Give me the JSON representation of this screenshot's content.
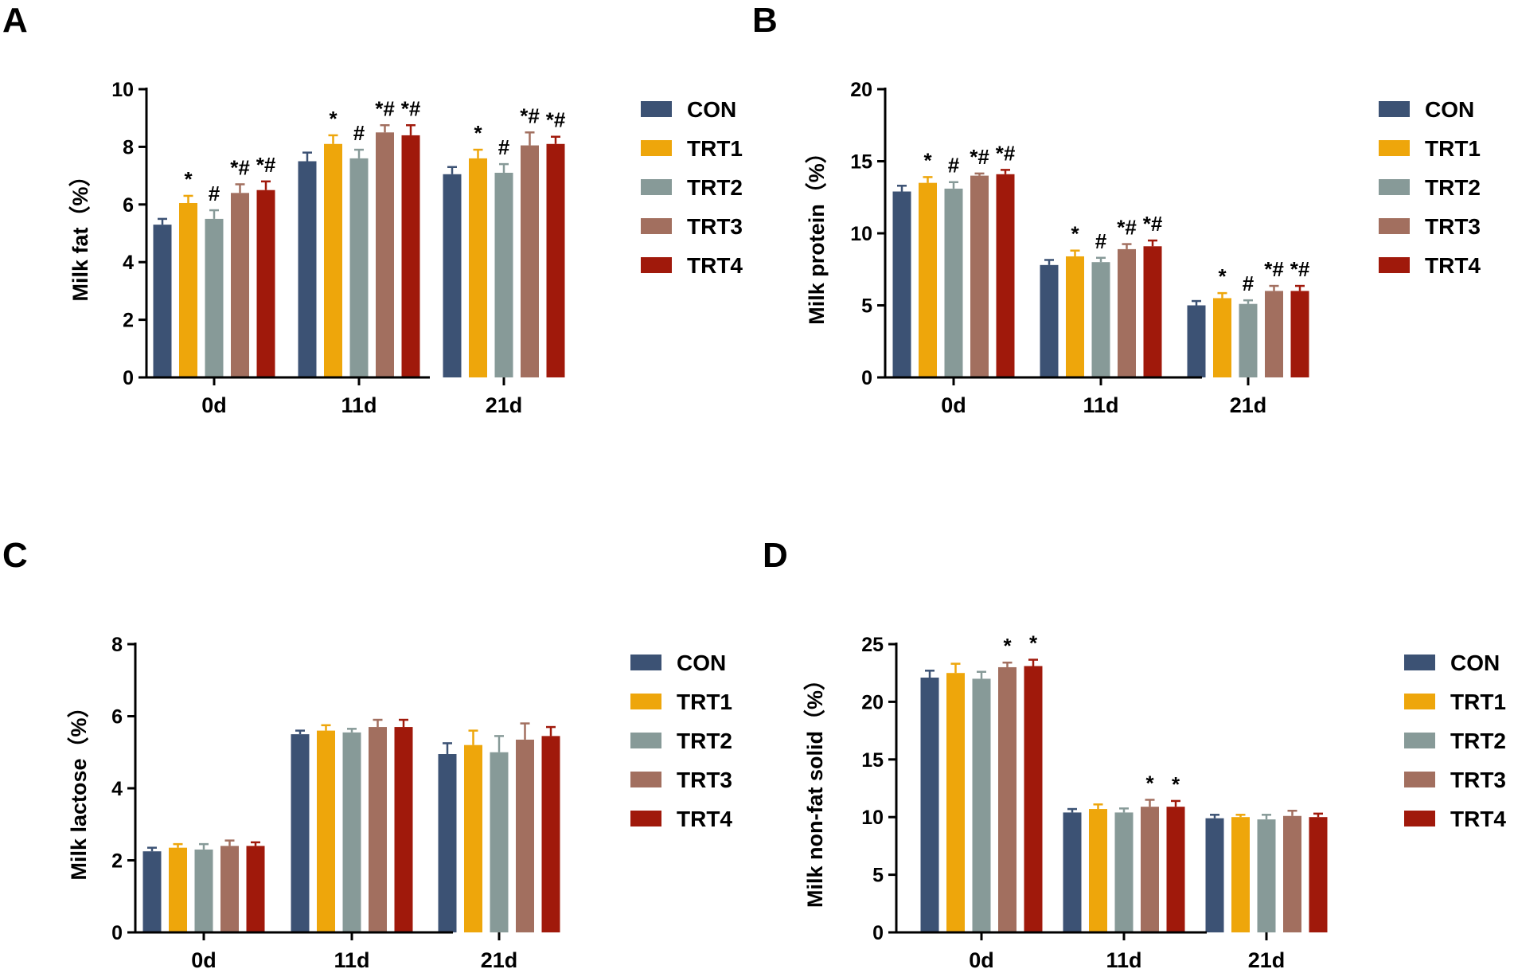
{
  "figure": {
    "series_colors": {
      "CON": "#3c5274",
      "TRT1": "#eea60b",
      "TRT2": "#879a98",
      "TRT3": "#a26f5f",
      "TRT4": "#a0190b"
    },
    "axis_color": "#000000"
  },
  "chart_data": [
    {
      "panel": "A",
      "type": "bar",
      "categories": [
        "0d",
        "11d",
        "21d"
      ],
      "ylabel": "Milk fat（%）",
      "ylim": [
        0,
        10
      ],
      "yticks": [
        0,
        2,
        4,
        6,
        8,
        10
      ],
      "legend_position": "right",
      "series": [
        {
          "name": "CON",
          "values": [
            5.3,
            7.5,
            7.05
          ],
          "errors": [
            0.2,
            0.3,
            0.25
          ],
          "sig": [
            "",
            "",
            ""
          ]
        },
        {
          "name": "TRT1",
          "values": [
            6.05,
            8.1,
            7.6
          ],
          "errors": [
            0.25,
            0.3,
            0.3
          ],
          "sig": [
            "*",
            "*",
            "*"
          ]
        },
        {
          "name": "TRT2",
          "values": [
            5.5,
            7.6,
            7.1
          ],
          "errors": [
            0.3,
            0.3,
            0.3
          ],
          "sig": [
            "#",
            "#",
            "#"
          ]
        },
        {
          "name": "TRT3",
          "values": [
            6.4,
            8.5,
            8.05
          ],
          "errors": [
            0.3,
            0.25,
            0.45
          ],
          "sig": [
            "*#",
            "*#",
            "*#"
          ]
        },
        {
          "name": "TRT4",
          "values": [
            6.5,
            8.4,
            8.1
          ],
          "errors": [
            0.3,
            0.35,
            0.25
          ],
          "sig": [
            "*#",
            "*#",
            "*#"
          ]
        }
      ]
    },
    {
      "panel": "B",
      "type": "bar",
      "categories": [
        "0d",
        "11d",
        "21d"
      ],
      "ylabel": "Milk protein（%）",
      "ylim": [
        0,
        20
      ],
      "yticks": [
        0,
        5,
        10,
        15,
        20
      ],
      "legend_position": "right",
      "series": [
        {
          "name": "CON",
          "values": [
            12.9,
            7.8,
            5.0
          ],
          "errors": [
            0.4,
            0.35,
            0.3
          ],
          "sig": [
            "",
            "",
            ""
          ]
        },
        {
          "name": "TRT1",
          "values": [
            13.5,
            8.4,
            5.5
          ],
          "errors": [
            0.4,
            0.4,
            0.35
          ],
          "sig": [
            "*",
            "*",
            "*"
          ]
        },
        {
          "name": "TRT2",
          "values": [
            13.1,
            8.0,
            5.1
          ],
          "errors": [
            0.45,
            0.3,
            0.25
          ],
          "sig": [
            "#",
            "#",
            "#"
          ]
        },
        {
          "name": "TRT3",
          "values": [
            14.0,
            8.9,
            6.0
          ],
          "errors": [
            0.15,
            0.35,
            0.35
          ],
          "sig": [
            "*#",
            "*#",
            "*#"
          ]
        },
        {
          "name": "TRT4",
          "values": [
            14.1,
            9.1,
            6.0
          ],
          "errors": [
            0.3,
            0.4,
            0.35
          ],
          "sig": [
            "*#",
            "*#",
            "*#"
          ]
        }
      ]
    },
    {
      "panel": "C",
      "type": "bar",
      "categories": [
        "0d",
        "11d",
        "21d"
      ],
      "ylabel": "Milk lactose（%）",
      "ylim": [
        0,
        8
      ],
      "yticks": [
        0,
        2,
        4,
        6,
        8
      ],
      "legend_position": "right",
      "series": [
        {
          "name": "CON",
          "values": [
            2.25,
            5.5,
            4.95
          ],
          "errors": [
            0.1,
            0.1,
            0.3
          ],
          "sig": [
            "",
            "",
            ""
          ]
        },
        {
          "name": "TRT1",
          "values": [
            2.35,
            5.6,
            5.2
          ],
          "errors": [
            0.1,
            0.15,
            0.4
          ],
          "sig": [
            "",
            "",
            ""
          ]
        },
        {
          "name": "TRT2",
          "values": [
            2.3,
            5.55,
            5.0
          ],
          "errors": [
            0.15,
            0.1,
            0.45
          ],
          "sig": [
            "",
            "",
            ""
          ]
        },
        {
          "name": "TRT3",
          "values": [
            2.4,
            5.7,
            5.35
          ],
          "errors": [
            0.15,
            0.2,
            0.45
          ],
          "sig": [
            "",
            "",
            ""
          ]
        },
        {
          "name": "TRT4",
          "values": [
            2.4,
            5.7,
            5.45
          ],
          "errors": [
            0.1,
            0.2,
            0.25
          ],
          "sig": [
            "",
            "",
            ""
          ]
        }
      ]
    },
    {
      "panel": "D",
      "type": "bar",
      "categories": [
        "0d",
        "11d",
        "21d"
      ],
      "ylabel": "Milk non-fat solid（%）",
      "ylim": [
        0,
        25
      ],
      "yticks": [
        0,
        5,
        10,
        15,
        20,
        25
      ],
      "legend_position": "right",
      "series": [
        {
          "name": "CON",
          "values": [
            22.1,
            10.4,
            9.9
          ],
          "errors": [
            0.6,
            0.3,
            0.3
          ],
          "sig": [
            "",
            "",
            ""
          ]
        },
        {
          "name": "TRT1",
          "values": [
            22.5,
            10.7,
            10.0
          ],
          "errors": [
            0.8,
            0.4,
            0.2
          ],
          "sig": [
            "",
            "",
            ""
          ]
        },
        {
          "name": "TRT2",
          "values": [
            22.0,
            10.4,
            9.8
          ],
          "errors": [
            0.6,
            0.35,
            0.4
          ],
          "sig": [
            "",
            "",
            ""
          ]
        },
        {
          "name": "TRT3",
          "values": [
            23.0,
            10.9,
            10.1
          ],
          "errors": [
            0.4,
            0.6,
            0.45
          ],
          "sig": [
            "*",
            "*",
            ""
          ]
        },
        {
          "name": "TRT4",
          "values": [
            23.1,
            10.9,
            10.0
          ],
          "errors": [
            0.55,
            0.5,
            0.3
          ],
          "sig": [
            "*",
            "*",
            ""
          ]
        }
      ]
    }
  ]
}
